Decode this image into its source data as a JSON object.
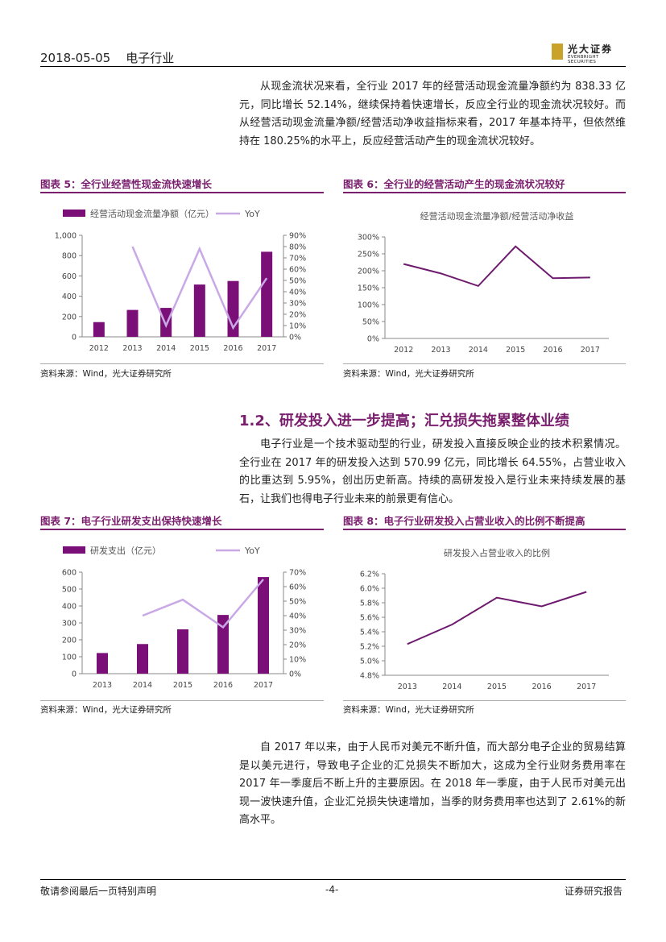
{
  "header": {
    "date": "2018-05-05",
    "industry": "电子行业",
    "logo_cn": "光大证券",
    "logo_en": "EVERBRIGHT SECURITIES"
  },
  "para1": "从现金流状况来看，全行业 2017 年的经营活动现金流量净额约为 838.33 亿元，同比增长 52.14%，继续保持着快速增长，反应全行业的现金流状况较好。而从经营活动现金流量净额/经营活动净收益指标来看，2017 年基本持平，但依然维持在 180.25%的水平上，反应经营活动产生的现金流状况较好。",
  "section_title": "1.2、研发投入进一步提高；汇兑损失拖累整体业绩",
  "para2": "电子行业是一个技术驱动型的行业，研发投入直接反映企业的技术积累情况。全行业在 2017 年的研发投入达到 570.99 亿元，同比增长 64.55%，占营业收入的比重达到 5.95%，创出历史新高。持续的高研发投入是行业未来持续发展的基石，让我们也得电子行业未来的前景更有信心。",
  "para3": "自 2017 年以来，由于人民币对美元不断升值，而大部分电子企业的贸易结算是以美元进行，导致电子企业的汇兑损失不断加大，这成为全行业财务费用率在 2017 年一季度后不断上升的主要原因。在 2018 年一季度，由于人民币对美元出现一波快速升值，企业汇兑损失快速增加，当季的财务费用率也达到了 2.61%的新高水平。",
  "source_text": "资料来源：Wind，光大证券研究所",
  "footer": {
    "left": "敬请参阅最后一页特别声明",
    "center": "-4-",
    "right": "证券研究报告"
  },
  "colors": {
    "accent": "#7a1f6e",
    "bar": "#7b0f78",
    "yoy": "#c9a8e6",
    "line": "#6e1a6e"
  },
  "chart_data": [
    {
      "id": "fig5",
      "figure_title": "图表 5：全行业经营性现金流快速增长",
      "type": "bar",
      "categories": [
        "2012",
        "2013",
        "2014",
        "2015",
        "2016",
        "2017"
      ],
      "series": [
        {
          "name": "经营活动现金流量净额（亿元）",
          "values": [
            145,
            265,
            285,
            515,
            550,
            838
          ],
          "axis": "left"
        },
        {
          "name": "YoY",
          "values": [
            null,
            80,
            10,
            78,
            8,
            52
          ],
          "axis": "right",
          "type": "line"
        }
      ],
      "ylim": [
        0,
        1000
      ],
      "yticks": [
        "0",
        "200",
        "400",
        "600",
        "800",
        "1,000"
      ],
      "y2lim": [
        0,
        90
      ],
      "y2ticks": [
        "0%",
        "10%",
        "20%",
        "30%",
        "40%",
        "50%",
        "60%",
        "70%",
        "80%",
        "90%"
      ],
      "title": ""
    },
    {
      "id": "fig6",
      "figure_title": "图表 6：全行业的经营活动产生的现金流状况较好",
      "type": "line",
      "title": "经营活动现金流量净额/经营活动净收益",
      "categories": [
        "2012",
        "2013",
        "2014",
        "2015",
        "2016",
        "2017"
      ],
      "series": [
        {
          "name": "经营活动现金流量净额/经营活动净收益",
          "values": [
            220,
            192,
            155,
            272,
            178,
            180
          ]
        }
      ],
      "ylim": [
        0,
        300
      ],
      "yticks": [
        "0%",
        "50%",
        "100%",
        "150%",
        "200%",
        "250%",
        "300%"
      ]
    },
    {
      "id": "fig7",
      "figure_title": "图表 7：电子行业研发支出保持快速增长",
      "type": "bar",
      "categories": [
        "2013",
        "2014",
        "2015",
        "2016",
        "2017"
      ],
      "series": [
        {
          "name": "研发支出（亿元）",
          "values": [
            122,
            175,
            262,
            347,
            571
          ],
          "axis": "left"
        },
        {
          "name": "YoY",
          "values": [
            null,
            40,
            51,
            32,
            65
          ],
          "axis": "right",
          "type": "line"
        }
      ],
      "ylim": [
        0,
        600
      ],
      "yticks": [
        "0",
        "100",
        "200",
        "300",
        "400",
        "500",
        "600"
      ],
      "y2lim": [
        0,
        70
      ],
      "y2ticks": [
        "0%",
        "10%",
        "20%",
        "30%",
        "40%",
        "50%",
        "60%",
        "70%"
      ],
      "title": ""
    },
    {
      "id": "fig8",
      "figure_title": "图表 8：电子行业研发投入占营业收入的比例不断提高",
      "type": "line",
      "title": "研发投入占营业收入的比例",
      "categories": [
        "2013",
        "2014",
        "2015",
        "2016",
        "2017"
      ],
      "series": [
        {
          "name": "研发投入占营业收入的比例",
          "values": [
            5.23,
            5.5,
            5.87,
            5.75,
            5.95
          ]
        }
      ],
      "ylim": [
        4.8,
        6.2
      ],
      "yticks": [
        "4.8%",
        "5.0%",
        "5.2%",
        "5.4%",
        "5.6%",
        "5.8%",
        "6.0%",
        "6.2%"
      ]
    }
  ]
}
